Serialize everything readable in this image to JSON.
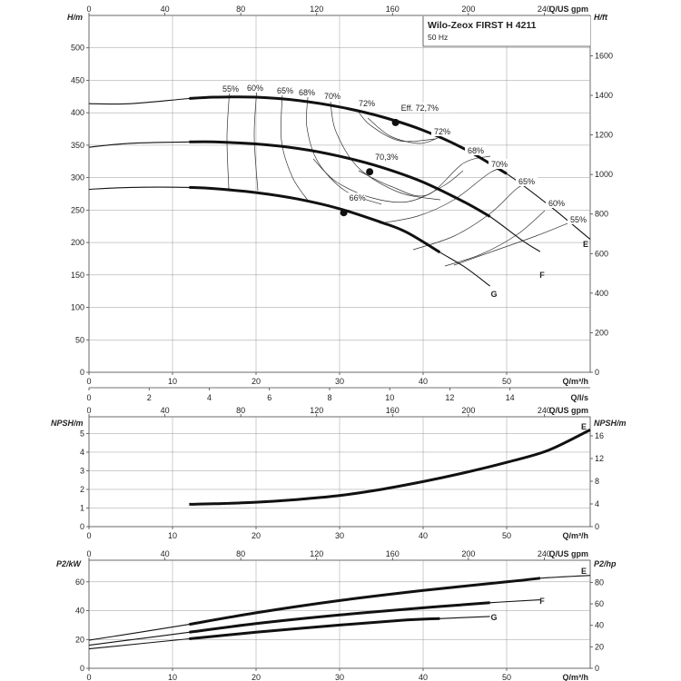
{
  "title": "Wilo-Zeox FIRST H 4211",
  "subtitle": "50 Hz",
  "chart_data": [
    {
      "type": "line",
      "name": "head",
      "x_unit": "Q/m³/h",
      "x_ticks": [
        "0",
        "10",
        "20",
        "30",
        "40",
        "50"
      ],
      "xlim": [
        0,
        60
      ],
      "top_axis_unit": "Q/US gpm",
      "top_ticks": [
        "0",
        "40",
        "80",
        "120",
        "160",
        "200",
        "240"
      ],
      "ylabel_left": "H/m",
      "ylabel_right": "H/ft",
      "ylim": [
        0,
        500
      ],
      "y_ticks": [
        "0",
        "50",
        "100",
        "150",
        "200",
        "250",
        "300",
        "350",
        "400",
        "450",
        "500"
      ],
      "y_right_ticks": [
        "0",
        "200",
        "400",
        "600",
        "800",
        "1000",
        "1200",
        "1400",
        "1600"
      ],
      "series": [
        {
          "name": "E",
          "x": [
            0,
            5,
            12,
            15,
            20,
            25,
            30,
            35,
            40,
            45,
            50,
            55,
            60
          ],
          "y": [
            414,
            414,
            422,
            424,
            424,
            419,
            409,
            394,
            373,
            344,
            306,
            258,
            205
          ]
        },
        {
          "name": "F",
          "x": [
            0,
            5,
            12,
            15,
            20,
            25,
            30,
            35,
            40,
            45,
            48,
            52,
            54
          ],
          "y": [
            347,
            353,
            355,
            355,
            352,
            345,
            333,
            316,
            293,
            262,
            240,
            202,
            186
          ]
        },
        {
          "name": "G",
          "x": [
            0,
            5,
            12,
            15,
            20,
            25,
            30,
            35,
            38,
            42,
            45,
            48
          ],
          "y": [
            282,
            285,
            285,
            283,
            277,
            267,
            252,
            231,
            216,
            185,
            162,
            133
          ]
        }
      ],
      "bep_points": [
        {
          "x": 36.7,
          "y": 385,
          "label": "Eff. 72,7%"
        },
        {
          "x": 33.6,
          "y": 309,
          "label": "70,3%"
        },
        {
          "x": 30.5,
          "y": 246,
          "label": "66%"
        }
      ],
      "efficiency_labels": [
        "55%",
        "60%",
        "65%",
        "68%",
        "70%",
        "72%",
        "72%",
        "68%",
        "70%",
        "65%",
        "60%",
        "55%"
      ],
      "curve_labels": [
        "E",
        "F",
        "G"
      ]
    },
    {
      "type": "line",
      "name": "flow-secondary-axis",
      "x_unit": "Q/l/s",
      "x_ticks": [
        "0",
        "2",
        "4",
        "6",
        "8",
        "10",
        "12",
        "14"
      ]
    },
    {
      "type": "line",
      "name": "npsh",
      "x_unit": "Q/m³/h",
      "x_ticks": [
        "0",
        "10",
        "20",
        "30",
        "40",
        "50"
      ],
      "top_axis_unit": "Q/US gpm",
      "top_ticks": [
        "0",
        "40",
        "80",
        "120",
        "160",
        "200",
        "240"
      ],
      "ylabel_left": "NPSH/m",
      "ylabel_right": "NPSH/m",
      "ylim": [
        0,
        5.5
      ],
      "y_ticks": [
        "0",
        "1",
        "2",
        "3",
        "4",
        "5"
      ],
      "y_right_ticks": [
        "0",
        "4",
        "8",
        "12",
        "16"
      ],
      "series": [
        {
          "name": "E",
          "x": [
            12,
            15,
            20,
            25,
            30,
            35,
            40,
            45,
            50,
            55,
            60
          ],
          "y": [
            1.2,
            1.23,
            1.31,
            1.46,
            1.67,
            2.0,
            2.42,
            2.9,
            3.45,
            4.1,
            5.2
          ]
        }
      ],
      "curve_labels": [
        "E"
      ]
    },
    {
      "type": "line",
      "name": "power",
      "x_unit": "Q/m³/h",
      "x_ticks": [
        "0",
        "10",
        "20",
        "30",
        "40",
        "50"
      ],
      "top_axis_unit": "Q/US gpm",
      "top_ticks": [
        "0",
        "40",
        "80",
        "120",
        "160",
        "200",
        "240"
      ],
      "ylabel_left": "P2/kW",
      "ylabel_right": "P2/hp",
      "ylim": [
        0,
        70
      ],
      "y_ticks": [
        "0",
        "20",
        "40",
        "60"
      ],
      "y_right_ticks": [
        "0",
        "20",
        "40",
        "60",
        "80"
      ],
      "series": [
        {
          "name": "E",
          "x": [
            0,
            12,
            20,
            30,
            40,
            50,
            54,
            60
          ],
          "y": [
            19.5,
            30.5,
            38.5,
            47,
            54,
            60,
            62.5,
            64.5
          ]
        },
        {
          "name": "F",
          "x": [
            0,
            12,
            20,
            30,
            40,
            48,
            54
          ],
          "y": [
            16,
            25,
            31,
            37,
            42,
            45.5,
            47.5
          ]
        },
        {
          "name": "G",
          "x": [
            0,
            12,
            20,
            30,
            38,
            42,
            48
          ],
          "y": [
            13.5,
            20.5,
            25,
            30,
            33.5,
            34.5,
            36
          ]
        }
      ],
      "curve_labels": [
        "E",
        "F",
        "G"
      ]
    }
  ]
}
